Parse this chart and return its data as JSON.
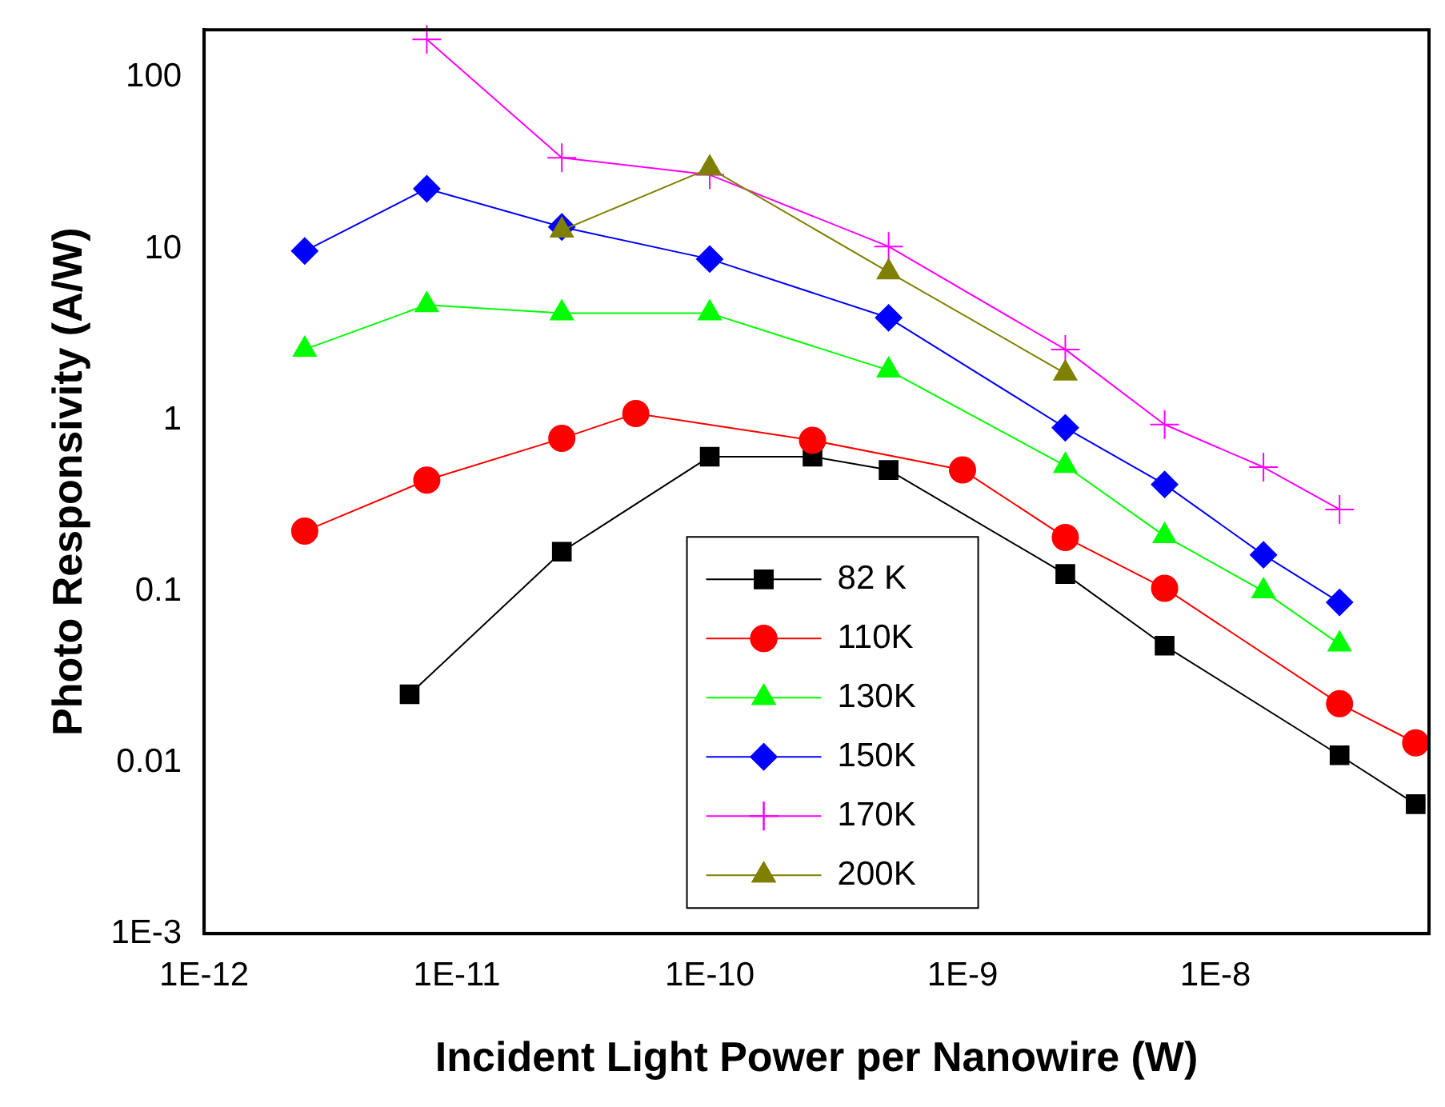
{
  "chart_data": {
    "type": "line",
    "xlabel": "Incident Light Power per Nanowire (W)",
    "ylabel": "Photo Responsivity (A/W)",
    "log": "xy",
    "xlim": [
      1e-12,
      7e-08
    ],
    "ylim": [
      0.001,
      190
    ],
    "xticks": [
      {
        "value": 1e-12,
        "label": "1E-12"
      },
      {
        "value": 1e-11,
        "label": "1E-11"
      },
      {
        "value": 1e-10,
        "label": "1E-10"
      },
      {
        "value": 1e-09,
        "label": "1E-9"
      },
      {
        "value": 1e-08,
        "label": "1E-8"
      }
    ],
    "yticks": [
      {
        "value": 0.001,
        "label": "1E-3"
      },
      0.01,
      0.1,
      1,
      10,
      100
    ],
    "grid": false,
    "legend": "bottom",
    "line_style": "solid",
    "series": [
      {
        "name": "82 K",
        "color": "#000000",
        "marker": "square",
        "x": [
          6.5e-12,
          2.6e-11,
          1e-10,
          2.55e-10,
          5.1e-10,
          2.55e-09,
          6.3e-09,
          3.1e-08,
          6.2e-08
        ],
        "values": [
          0.025,
          0.17,
          0.61,
          0.61,
          0.51,
          0.126,
          0.048,
          0.011,
          0.0057
        ]
      },
      {
        "name": "110K",
        "color": "#ff0000",
        "marker": "circle",
        "x": [
          2.5e-12,
          7.6e-12,
          2.6e-11,
          5.1e-11,
          2.55e-10,
          1e-09,
          2.55e-09,
          6.3e-09,
          3.1e-08,
          6.2e-08
        ],
        "values": [
          0.224,
          0.445,
          0.78,
          1.09,
          0.76,
          0.51,
          0.206,
          0.104,
          0.022,
          0.013
        ]
      },
      {
        "name": "130K",
        "color": "#00ff00",
        "marker": "triangle",
        "x": [
          2.5e-12,
          7.6e-12,
          2.6e-11,
          1e-10,
          5.1e-10,
          2.55e-09,
          6.3e-09,
          1.55e-08,
          3.1e-08
        ],
        "values": [
          2.58,
          4.7,
          4.2,
          4.2,
          1.95,
          0.54,
          0.21,
          0.1,
          0.049
        ]
      },
      {
        "name": "150K",
        "color": "#0000ff",
        "marker": "diamond",
        "x": [
          2.5e-12,
          7.6e-12,
          2.6e-11,
          1e-10,
          5.1e-10,
          2.55e-09,
          6.3e-09,
          1.55e-08,
          3.1e-08
        ],
        "values": [
          9.7,
          22.4,
          13.4,
          8.7,
          3.95,
          0.9,
          0.42,
          0.163,
          0.086
        ]
      },
      {
        "name": "170K",
        "color": "#ff00ff",
        "marker": "cross",
        "x": [
          7.6e-12,
          2.6e-11,
          1e-10,
          5.1e-10,
          2.55e-09,
          6.3e-09,
          1.55e-08,
          3.1e-08
        ],
        "values": [
          167,
          34,
          27,
          10.3,
          2.58,
          0.94,
          0.53,
          0.3
        ]
      },
      {
        "name": "200K",
        "color": "#808000",
        "marker": "triangle",
        "x": [
          2.6e-11,
          1e-10,
          5.1e-10,
          2.55e-09
        ],
        "values": [
          12.8,
          29.5,
          7.3,
          1.87
        ]
      }
    ]
  }
}
